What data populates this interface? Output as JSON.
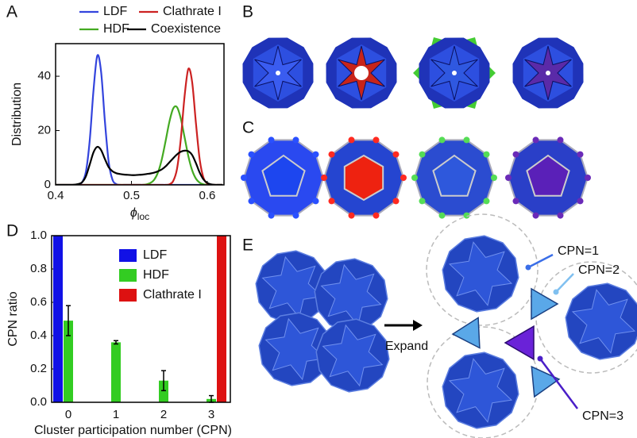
{
  "figure": {
    "panel_labels": [
      "A",
      "B",
      "C",
      "D",
      "E"
    ],
    "expand": "Expand",
    "cpn_labels": [
      "CPN=1",
      "CPN=2",
      "CPN=3"
    ]
  },
  "chart_data": [
    {
      "type": "line",
      "xlabel": "ϕ",
      "xlabel_sub": "loc",
      "ylabel": "Distribution",
      "legend": "top",
      "x": [
        0.4,
        0.405,
        0.41,
        0.415,
        0.42,
        0.425,
        0.43,
        0.435,
        0.44,
        0.445,
        0.45,
        0.455,
        0.46,
        0.465,
        0.47,
        0.475,
        0.48,
        0.485,
        0.49,
        0.495,
        0.5,
        0.505,
        0.51,
        0.515,
        0.52,
        0.525,
        0.53,
        0.535,
        0.54,
        0.545,
        0.55,
        0.555,
        0.56,
        0.565,
        0.57,
        0.575,
        0.58,
        0.585,
        0.59,
        0.595,
        0.6,
        0.605,
        0.61,
        0.615,
        0.62
      ],
      "series": [
        {
          "name": "LDF",
          "color": "#3344dd",
          "values": [
            0,
            0,
            0,
            0,
            0,
            0,
            0.1,
            1.0,
            4.9,
            16.4,
            34.9,
            47.6,
            41.6,
            23.4,
            8.4,
            1.9,
            0.3,
            0,
            0,
            0,
            0,
            0,
            0,
            0,
            0,
            0,
            0,
            0,
            0,
            0,
            0,
            0,
            0,
            0,
            0,
            0,
            0,
            0,
            0,
            0,
            0,
            0,
            0,
            0,
            0
          ]
        },
        {
          "name": "HDF",
          "color": "#44aa22",
          "values": [
            0,
            0,
            0,
            0,
            0,
            0,
            0,
            0,
            0,
            0,
            0,
            0,
            0,
            0,
            0,
            0,
            0,
            0,
            0,
            0,
            0,
            0,
            0,
            0,
            0.2,
            0.7,
            1.9,
            4.6,
            9.4,
            16.1,
            23.2,
            28.1,
            28.6,
            24.5,
            17.6,
            10.6,
            5.4,
            2.3,
            0.8,
            0.2,
            0,
            0,
            0,
            0,
            0
          ]
        },
        {
          "name": "Clathrate I",
          "color": "#cc2222",
          "values": [
            0,
            0,
            0,
            0,
            0,
            0,
            0,
            0,
            0,
            0,
            0,
            0,
            0,
            0,
            0,
            0,
            0,
            0,
            0,
            0,
            0,
            0,
            0,
            0,
            0,
            0,
            0,
            0,
            0,
            0,
            0.2,
            1.4,
            5.8,
            16.7,
            32.5,
            42.7,
            37.9,
            22.8,
            9.3,
            2.6,
            0.5,
            0.1,
            0,
            0,
            0
          ]
        },
        {
          "name": "Coexistence",
          "color": "#000000",
          "values": [
            0,
            0,
            0,
            0,
            0,
            0.1,
            0.3,
            1.0,
            3.2,
            7.5,
            12.0,
            14.0,
            12.8,
            9.5,
            6.5,
            5.0,
            4.3,
            4.0,
            3.8,
            3.7,
            3.6,
            3.6,
            3.7,
            3.8,
            4.0,
            4.2,
            4.5,
            5.0,
            5.7,
            6.8,
            8.3,
            9.8,
            11.2,
            12.2,
            12.6,
            12.4,
            11.0,
            8.0,
            4.5,
            2.0,
            0.7,
            0.2,
            0,
            0,
            0
          ]
        }
      ],
      "xlim": [
        0.4,
        0.622
      ],
      "xticks": [
        0.4,
        0.5,
        0.6
      ],
      "ylim": [
        0,
        52
      ],
      "yticks": [
        0,
        20,
        40
      ]
    },
    {
      "type": "bar",
      "xlabel": "Cluster participation number (CPN)",
      "ylabel": "CPN ratio",
      "legend": "upper right",
      "categories": [
        "0",
        "1",
        "2",
        "3"
      ],
      "series": [
        {
          "name": "LDF",
          "color": "#1111e6",
          "values": [
            1.0,
            0,
            0,
            0
          ]
        },
        {
          "name": "HDF",
          "color": "#33cc22",
          "values": [
            0.49,
            0.36,
            0.13,
            0.02
          ],
          "errors": [
            0.09,
            0.01,
            0.06,
            0.02
          ]
        },
        {
          "name": "Clathrate I",
          "color": "#dd1111",
          "values": [
            0,
            0,
            0,
            1.0
          ]
        }
      ],
      "ylim": [
        0,
        1.0
      ],
      "yticks": [
        {
          "value": 0,
          "label": "0.0"
        },
        0.2,
        0.4,
        0.6,
        0.8,
        {
          "value": 1,
          "label": "1.0"
        }
      ]
    }
  ]
}
